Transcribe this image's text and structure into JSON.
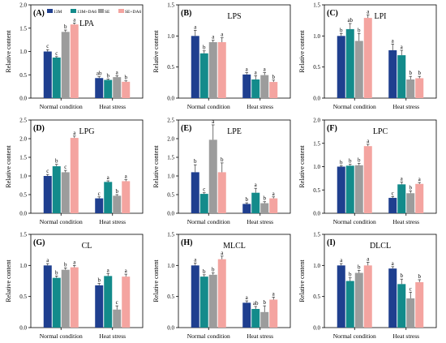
{
  "legend": [
    "13M",
    "13M+DA6",
    "SE",
    "SE+DA6"
  ],
  "colors": [
    "#1f3f8f",
    "#138b8b",
    "#9c9c9c",
    "#f4a4a0"
  ],
  "chart_data": [
    {
      "type": "bar",
      "panel_label": "(A)",
      "title": "LPA",
      "ylabel": "Relative content",
      "categories": [
        "Normal condition",
        "Heat stress"
      ],
      "ylim": [
        0,
        2.0
      ],
      "yticks": [
        "0.0",
        "0.5",
        "1.0",
        "1.5",
        "2.0"
      ],
      "ytick_values": [
        0,
        0.5,
        1.0,
        1.5,
        2.0
      ],
      "series": [
        {
          "name": "13M",
          "values": [
            1.0,
            0.43
          ]
        },
        {
          "name": "13M+DA6",
          "values": [
            0.87,
            0.39
          ]
        },
        {
          "name": "SE",
          "values": [
            1.42,
            0.45
          ]
        },
        {
          "name": "SE+DA6",
          "values": [
            1.58,
            0.35
          ]
        }
      ],
      "errors": [
        [
          0.04,
          0.03
        ],
        [
          0.02,
          0.02
        ],
        [
          0.04,
          0.03
        ],
        [
          0.03,
          0.02
        ]
      ],
      "letters": [
        [
          "c",
          "ab"
        ],
        [
          "c",
          "b"
        ],
        [
          "b",
          "a"
        ],
        [
          "a",
          "b"
        ]
      ],
      "legend_shown": true
    },
    {
      "type": "bar",
      "panel_label": "(B)",
      "title": "LPS",
      "ylabel": "Relative content",
      "categories": [
        "Normal condition",
        "Heat stress"
      ],
      "ylim": [
        0,
        1.5
      ],
      "yticks": [
        "0.0",
        "0.5",
        "1.0",
        "1.5"
      ],
      "ytick_values": [
        0,
        0.5,
        1.0,
        1.5
      ],
      "series": [
        {
          "name": "13M",
          "values": [
            1.0,
            0.38
          ]
        },
        {
          "name": "13M+DA6",
          "values": [
            0.72,
            0.3
          ]
        },
        {
          "name": "SE",
          "values": [
            0.9,
            0.37
          ]
        },
        {
          "name": "SE+DA6",
          "values": [
            0.9,
            0.26
          ]
        }
      ],
      "errors": [
        [
          0.09,
          0.03
        ],
        [
          0.04,
          0.06
        ],
        [
          0.03,
          0.04
        ],
        [
          0.07,
          0.03
        ]
      ],
      "letters": [
        [
          "a",
          "a"
        ],
        [
          "b",
          "a"
        ],
        [
          "a",
          "a"
        ],
        [
          "a",
          "b"
        ]
      ]
    },
    {
      "type": "bar",
      "panel_label": "(C)",
      "title": "LPI",
      "ylabel": "Relative content",
      "categories": [
        "Normal condition",
        "Heat stress"
      ],
      "ylim": [
        0,
        1.5
      ],
      "yticks": [
        "0.0",
        "0.5",
        "1.0",
        "1.5"
      ],
      "ytick_values": [
        0,
        0.5,
        1.0,
        1.5
      ],
      "series": [
        {
          "name": "13M",
          "values": [
            1.0,
            0.77
          ]
        },
        {
          "name": "13M+DA6",
          "values": [
            1.11,
            0.69
          ]
        },
        {
          "name": "SE",
          "values": [
            0.92,
            0.3
          ]
        },
        {
          "name": "SE+DA6",
          "values": [
            1.29,
            0.32
          ]
        }
      ],
      "errors": [
        [
          0.04,
          0.1
        ],
        [
          0.09,
          0.08
        ],
        [
          0.12,
          0.05
        ],
        [
          0.05,
          0.03
        ]
      ],
      "letters": [
        [
          "b",
          "a"
        ],
        [
          "ab",
          "a"
        ],
        [
          "b",
          "b"
        ],
        [
          "a",
          "b"
        ]
      ]
    },
    {
      "type": "bar",
      "panel_label": "(D)",
      "title": "LPG",
      "ylabel": "Relative content",
      "categories": [
        "Normal condition",
        "Heat stress"
      ],
      "ylim": [
        0,
        2.5
      ],
      "yticks": [
        "0.0",
        "0.5",
        "1.0",
        "1.5",
        "2.0",
        "2.5"
      ],
      "ytick_values": [
        0,
        0.5,
        1.0,
        1.5,
        2.0,
        2.5
      ],
      "series": [
        {
          "name": "13M",
          "values": [
            1.0,
            0.4
          ]
        },
        {
          "name": "13M+DA6",
          "values": [
            1.26,
            0.84
          ]
        },
        {
          "name": "SE",
          "values": [
            1.1,
            0.47
          ]
        },
        {
          "name": "SE+DA6",
          "values": [
            2.02,
            0.86
          ]
        }
      ],
      "errors": [
        [
          0.04,
          0.04
        ],
        [
          0.05,
          0.03
        ],
        [
          0.05,
          0.03
        ],
        [
          0.05,
          0.04
        ]
      ],
      "letters": [
        [
          "c",
          "c"
        ],
        [
          "b",
          "a"
        ],
        [
          "c",
          "b"
        ],
        [
          "a",
          "a"
        ]
      ]
    },
    {
      "type": "bar",
      "panel_label": "(E)",
      "title": "LPE",
      "ylabel": "Relative content",
      "categories": [
        "Normal condition",
        "Heat stress"
      ],
      "ylim": [
        0,
        2.5
      ],
      "yticks": [
        "0.0",
        "0.5",
        "1.0",
        "1.5",
        "2.0",
        "2.5"
      ],
      "ytick_values": [
        0,
        0.5,
        1.0,
        1.5,
        2.0,
        2.5
      ],
      "series": [
        {
          "name": "13M",
          "values": [
            1.1,
            0.25
          ]
        },
        {
          "name": "13M+DA6",
          "values": [
            0.52,
            0.55
          ]
        },
        {
          "name": "SE",
          "values": [
            1.97,
            0.27
          ]
        },
        {
          "name": "SE+DA6",
          "values": [
            1.1,
            0.4
          ]
        }
      ],
      "errors": [
        [
          0.2,
          0.03
        ],
        [
          0.03,
          0.12
        ],
        [
          0.4,
          0.04
        ],
        [
          0.25,
          0.04
        ]
      ],
      "letters": [
        [
          "b",
          "b"
        ],
        [
          "c",
          "a"
        ],
        [
          "a",
          "b"
        ],
        [
          "b",
          "a"
        ]
      ]
    },
    {
      "type": "bar",
      "panel_label": "(F)",
      "title": "LPC",
      "ylabel": "Relative content",
      "categories": [
        "Normal condition",
        "Heat stress"
      ],
      "ylim": [
        0,
        2.0
      ],
      "yticks": [
        "0.0",
        "0.5",
        "1.0",
        "1.5",
        "2.0"
      ],
      "ytick_values": [
        0,
        0.5,
        1.0,
        1.5,
        2.0
      ],
      "series": [
        {
          "name": "13M",
          "values": [
            1.0,
            0.33
          ]
        },
        {
          "name": "13M+DA6",
          "values": [
            1.02,
            0.62
          ]
        },
        {
          "name": "SE",
          "values": [
            1.03,
            0.43
          ]
        },
        {
          "name": "SE+DA6",
          "values": [
            1.44,
            0.63
          ]
        }
      ],
      "errors": [
        [
          0.02,
          0.03
        ],
        [
          0.03,
          0.05
        ],
        [
          0.04,
          0.05
        ],
        [
          0.04,
          0.03
        ]
      ],
      "letters": [
        [
          "b",
          "c"
        ],
        [
          "b",
          "a"
        ],
        [
          "b",
          "b"
        ],
        [
          "a",
          "a"
        ]
      ]
    },
    {
      "type": "bar",
      "panel_label": "(G)",
      "title": "CL",
      "ylabel": "Relative content",
      "categories": [
        "Normal condition",
        "Heat stress"
      ],
      "ylim": [
        0,
        1.5
      ],
      "yticks": [
        "0.0",
        "0.5",
        "1.0",
        "1.5"
      ],
      "ytick_values": [
        0,
        0.5,
        1.0,
        1.5
      ],
      "series": [
        {
          "name": "13M",
          "values": [
            1.0,
            0.68
          ]
        },
        {
          "name": "13M+DA6",
          "values": [
            0.8,
            0.83
          ]
        },
        {
          "name": "SE",
          "values": [
            0.93,
            0.29
          ]
        },
        {
          "name": "SE+DA6",
          "values": [
            0.97,
            0.82
          ]
        }
      ],
      "errors": [
        [
          0.03,
          0.03
        ],
        [
          0.03,
          0.04
        ],
        [
          0.03,
          0.06
        ],
        [
          0.03,
          0.04
        ]
      ],
      "letters": [
        [
          "a",
          "b"
        ],
        [
          "b",
          "a"
        ],
        [
          "b",
          "c"
        ],
        [
          "a",
          "a"
        ]
      ]
    },
    {
      "type": "bar",
      "panel_label": "(H)",
      "title": "MLCL",
      "ylabel": "Relative content",
      "categories": [
        "Normal condition",
        "Heat stress"
      ],
      "ylim": [
        0,
        1.5
      ],
      "yticks": [
        "0.0",
        "0.5",
        "1.0",
        "1.5"
      ],
      "ytick_values": [
        0,
        0.5,
        1.0,
        1.5
      ],
      "series": [
        {
          "name": "13M",
          "values": [
            1.0,
            0.4
          ]
        },
        {
          "name": "13M+DA6",
          "values": [
            0.82,
            0.3
          ]
        },
        {
          "name": "SE",
          "values": [
            0.85,
            0.25
          ]
        },
        {
          "name": "SE+DA6",
          "values": [
            1.1,
            0.45
          ]
        }
      ],
      "errors": [
        [
          0.04,
          0.03
        ],
        [
          0.03,
          0.04
        ],
        [
          0.03,
          0.1
        ],
        [
          0.05,
          0.04
        ]
      ],
      "letters": [
        [
          "a",
          "a"
        ],
        [
          "b",
          "ab"
        ],
        [
          "b",
          "b"
        ],
        [
          "a",
          "a"
        ]
      ]
    },
    {
      "type": "bar",
      "panel_label": "(I)",
      "title": "DLCL",
      "ylabel": "Relative content",
      "categories": [
        "Normal condition",
        "Heat stress"
      ],
      "ylim": [
        0,
        1.5
      ],
      "yticks": [
        "0.0",
        "0.5",
        "1.0",
        "1.5"
      ],
      "ytick_values": [
        0,
        0.5,
        1.0,
        1.5
      ],
      "series": [
        {
          "name": "13M",
          "values": [
            1.0,
            0.95
          ]
        },
        {
          "name": "13M+DA6",
          "values": [
            0.75,
            0.7
          ]
        },
        {
          "name": "SE",
          "values": [
            0.88,
            0.47
          ]
        },
        {
          "name": "SE+DA6",
          "values": [
            1.0,
            0.73
          ]
        }
      ],
      "errors": [
        [
          0.03,
          0.03
        ],
        [
          0.05,
          0.08
        ],
        [
          0.04,
          0.1
        ],
        [
          0.05,
          0.04
        ]
      ],
      "letters": [
        [
          "a",
          "a"
        ],
        [
          "b",
          "b"
        ],
        [
          "b",
          "c"
        ],
        [
          "a",
          "b"
        ]
      ]
    }
  ]
}
